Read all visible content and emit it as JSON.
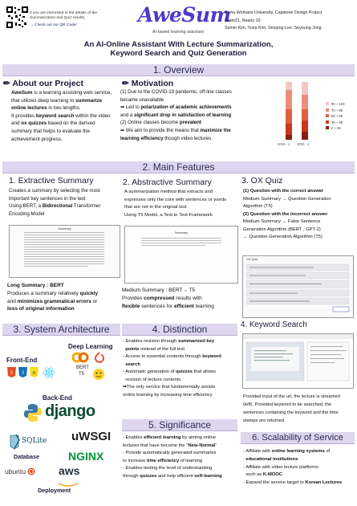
{
  "header": {
    "qr_note_1": "If you are interested in the details of the",
    "qr_note_2": "Summarization and Quiz results,",
    "qr_note_3": "→ Check out our QR Code!",
    "logo": "AweSum",
    "logo_sub": "AI-based learning assistant",
    "right_1": "Ewha Womans University, Capstone Design Project",
    "right_2": "Team21, Nearly 10",
    "right_3": "Somin Kim, Yuna Kim, Seojung Lee, Seyoung Jung",
    "title_1": "An AI-Online Assistant With Lecture Summarization,",
    "title_2": "Keyword Search and Quiz Generation"
  },
  "overview": {
    "bar": "1.  Overview",
    "about_h": "✏ About our Project",
    "about_1": "AweSum",
    "about_2": " is a learning assisting web service,",
    "about_3": "that utilizes deep learning to ",
    "about_4": "summarize",
    "about_5": "online lectures",
    "about_6": " in two lengths.",
    "about_7": "It provides ",
    "about_8": "keyword search",
    "about_9": " within the video",
    "about_10": "and ",
    "about_11": "ox quizzes",
    "about_12": " based on the derived",
    "about_13": "summary that helps to evaluate the",
    "about_14": "achievement progress.",
    "mot_h": "✏ Motivation",
    "mot_1": "(1) Due to the COVID-19 pandemic, off-line classes",
    "mot_2": "became unavailable",
    "mot_3": "➡ Led to ",
    "mot_4": "polarization of academic achievements",
    "mot_5": "and a ",
    "mot_6": "significant drop in satisfaction of learning",
    "mot_7": "(2) Online classes become ",
    "mot_8": "prevalent",
    "mot_9": "➡ We aim to provide the means that ",
    "mot_10": "maximize the",
    "mot_11": "learning efficiency",
    "mot_12": " though video lectures",
    "chart_cats": [
      "2019 - 1",
      "2020 - 1"
    ],
    "legend": [
      "90 ~ 100",
      "70 ~ 89",
      "50 ~ 69",
      "30 ~ 49",
      "0 ~ 29"
    ],
    "legend_colors": [
      "#f2c7c2",
      "#ea8e79",
      "#e06040",
      "#c7381f",
      "#8c1c12"
    ]
  },
  "main_bar": "2.  Main Features",
  "extractive": {
    "h": "1. Extractive Summary",
    "t1": "Creates a summary by selecting the most",
    "t2": "important key sentences in the text",
    "t3": "Using BERT, a ",
    "t4": "Bidirectional",
    "t5": " Transformer",
    "t6": "Encoding Model",
    "img_title": "Summary",
    "cap_1": "Long Summary : BERT",
    "cap_2": "Produces a summary relatively ",
    "cap_3": "quickly",
    "cap_4": "and ",
    "cap_5": "minimizes grammatical errors",
    "cap_6": " or",
    "cap_7": "loss of original information"
  },
  "abstractive": {
    "h": "2. Abstractive Summary",
    "t1": "A summarization method that extracts and",
    "t2": "expresses only the core with sentences or words",
    "t3": "that are not in the original text",
    "t4": "Using T5 Model, a Text to Text Framework",
    "img_title": "Summary",
    "cap_1": "Medium Summary : BERT→  T5",
    "cap_2": "Provides ",
    "cap_3": "compressed",
    "cap_4": " results with",
    "cap_5": "flexible",
    "cap_6": " sentences for ",
    "cap_7": "efficient",
    "cap_8": " learning"
  },
  "quiz": {
    "h": "3. OX Quiz",
    "t1": "(1) Question with the correct answer",
    "t2": "Medium Summary → Question Generation",
    "t3": "Algorithm (T5)",
    "t4": "(2) Question with the incorrect answer",
    "t5": "Medium Summary → False Sentence",
    "t6": "Generation Algorithm (BERT , GPT-2)",
    "t7": "→ Question Generation Algorithm (T5)",
    "img_title": "OX Quiz"
  },
  "arch": {
    "bar": "3.  System Architecture",
    "deep": "Deep Learning",
    "bert": "BERT",
    "t5": "T5",
    "frontend": "Front-End",
    "backend": "Back-End",
    "django": "django",
    "sqlite": "SQLite",
    "database": "Database",
    "uwsgi": "uWSGI",
    "nginx": "NGINX",
    "ubuntu": "ubuntu",
    "aws": "aws",
    "deployment": "Deployment",
    "css_badge": "CSS",
    "js_badge": "JS"
  },
  "distinction": {
    "bar": "4.  Distinction",
    "d1": "- Enables revision through ",
    "d2": "summarized key",
    "d3": "points",
    "d4": " instead of the full text",
    "d5": "- Access to essential contents through ",
    "d6": "keyword",
    "d7": "search",
    "d8": "- Automatic generation of ",
    "d9": "quizzes",
    "d10": " that allows",
    "d11": "revision of lecture contents",
    "d12": "➡The only service that fundamentally assists",
    "d13": "online learning by increasing time efficiency"
  },
  "significance": {
    "bar": "5.  Significance",
    "s1": "- Enables ",
    "s2": "efficient learning",
    "s3": " by aiming online",
    "s4": "lectures that have become the \"",
    "s5": "New-Normal",
    "s6": "\"",
    "s7": "- Provide automatically generated summaries",
    "s8": "to increase ",
    "s9": "time efficiency",
    "s10": " of learning",
    "s11": "- Enables testing the level of understanding",
    "s12": "through ",
    "s13": "quizzes",
    "s14": " and help efficient ",
    "s15": "self-learning"
  },
  "keyword": {
    "bar": "4. Keyword Search",
    "k1": "Provided input of the url, the lecture is streamed",
    "k2": "(left). Provided keyword to be searched, the",
    "k3": "sentences containing the keyword and the time",
    "k4": "stamps are returned."
  },
  "scalability": {
    "bar": "6. Scalability of Service",
    "c1": "- Affiliate with ",
    "c2": "online learning systems",
    "c3": " of",
    "c4": "educational institutions",
    "c5": "- Affiliate with video lecture platforms",
    "c6": "such as ",
    "c7": "K-MOOC",
    "c8": "- Expand the service target to ",
    "c9": "Korean Lectures"
  }
}
